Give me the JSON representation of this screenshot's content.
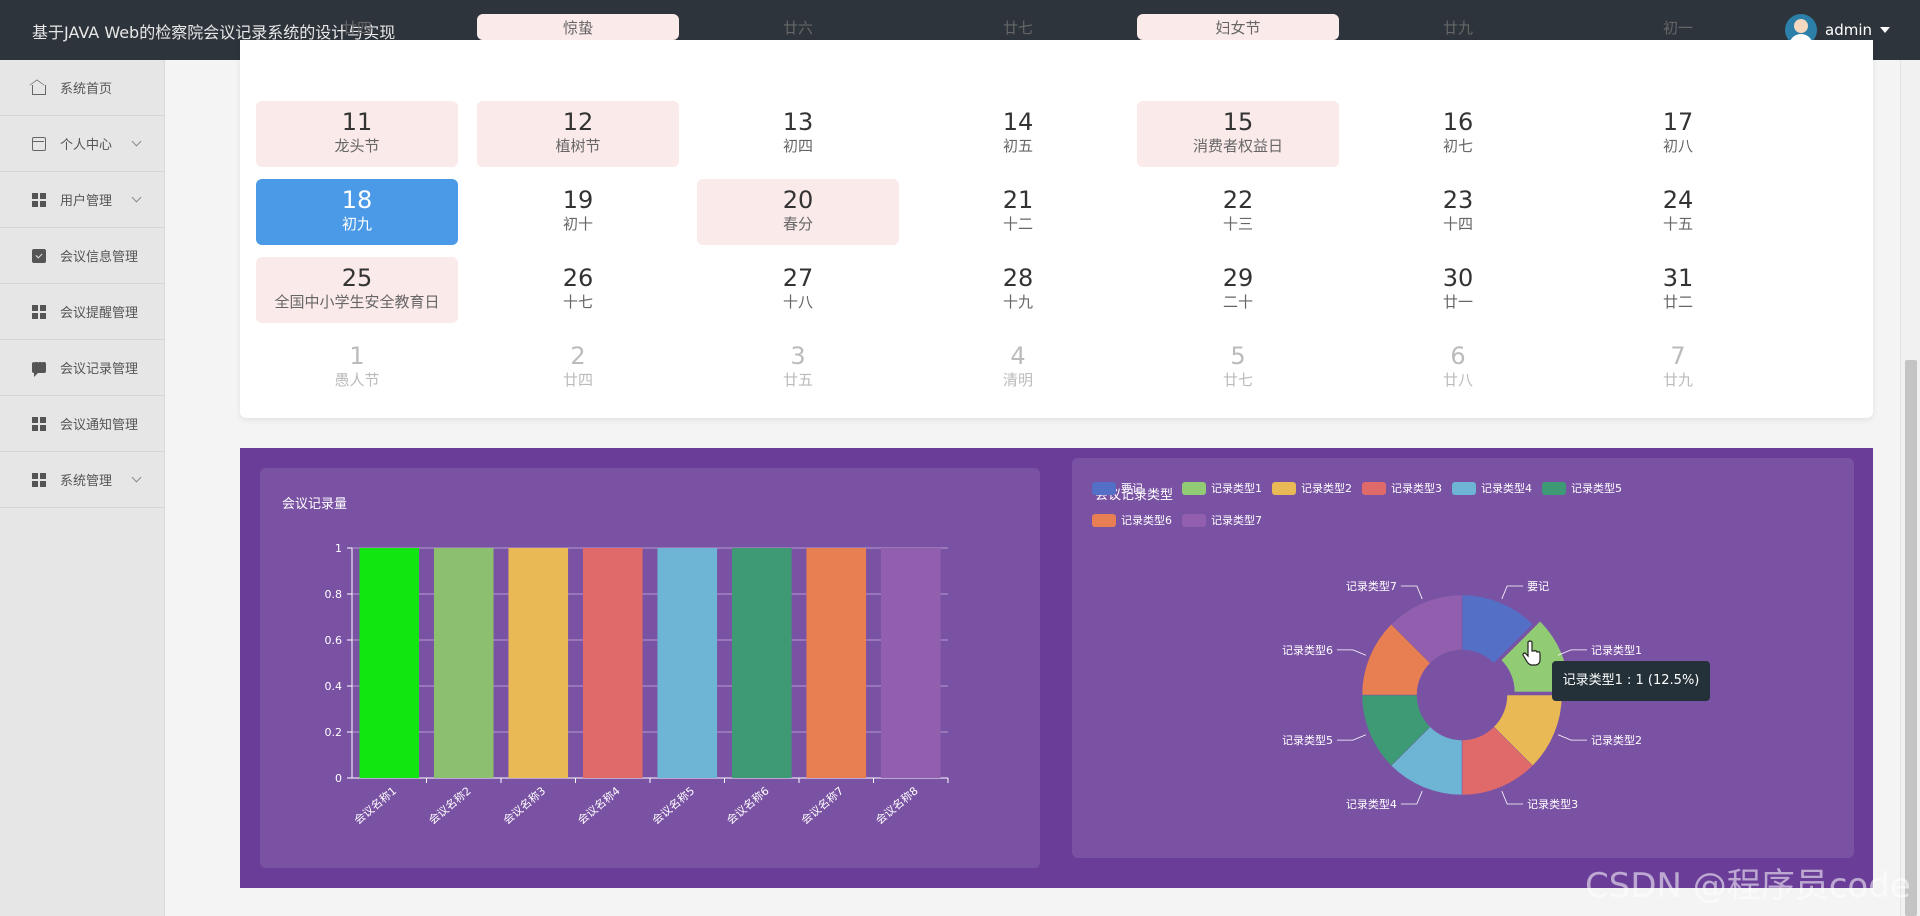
{
  "app": {
    "title": "基于JAVA Web的检察院会议记录系统的设计与实现",
    "user": "admin"
  },
  "sidebar": {
    "items": [
      {
        "label": "系统首页",
        "icon": "home-icon",
        "expandable": false
      },
      {
        "label": "个人中心",
        "icon": "id-card-icon",
        "expandable": true
      },
      {
        "label": "用户管理",
        "icon": "grid-icon",
        "expandable": true
      },
      {
        "label": "会议信息管理",
        "icon": "clipboard-check-icon",
        "expandable": false
      },
      {
        "label": "会议提醒管理",
        "icon": "grid-icon",
        "expandable": false
      },
      {
        "label": "会议记录管理",
        "icon": "chat-icon",
        "expandable": false
      },
      {
        "label": "会议通知管理",
        "icon": "grid-icon",
        "expandable": false
      },
      {
        "label": "系统管理",
        "icon": "grid-icon",
        "expandable": true
      }
    ]
  },
  "calendar": {
    "weeks": [
      [
        {
          "d": "",
          "l": "廿四",
          "t": "top"
        },
        {
          "d": "",
          "l": "惊蛰",
          "t": "top hol"
        },
        {
          "d": "",
          "l": "廿六",
          "t": "top"
        },
        {
          "d": "",
          "l": "廿七",
          "t": "top"
        },
        {
          "d": "",
          "l": "妇女节",
          "t": "top hol"
        },
        {
          "d": "",
          "l": "廿九",
          "t": "top"
        },
        {
          "d": "",
          "l": "初一",
          "t": "top"
        }
      ],
      [
        {
          "d": "11",
          "l": "龙头节",
          "t": "hol"
        },
        {
          "d": "12",
          "l": "植树节",
          "t": "hol"
        },
        {
          "d": "13",
          "l": "初四",
          "t": ""
        },
        {
          "d": "14",
          "l": "初五",
          "t": ""
        },
        {
          "d": "15",
          "l": "消费者权益日",
          "t": "hol"
        },
        {
          "d": "16",
          "l": "初七",
          "t": ""
        },
        {
          "d": "17",
          "l": "初八",
          "t": ""
        }
      ],
      [
        {
          "d": "18",
          "l": "初九",
          "t": "today"
        },
        {
          "d": "19",
          "l": "初十",
          "t": ""
        },
        {
          "d": "20",
          "l": "春分",
          "t": "hol"
        },
        {
          "d": "21",
          "l": "十二",
          "t": ""
        },
        {
          "d": "22",
          "l": "十三",
          "t": ""
        },
        {
          "d": "23",
          "l": "十四",
          "t": ""
        },
        {
          "d": "24",
          "l": "十五",
          "t": ""
        }
      ],
      [
        {
          "d": "25",
          "l": "全国中小学生安全教育日",
          "t": "hol"
        },
        {
          "d": "26",
          "l": "十七",
          "t": ""
        },
        {
          "d": "27",
          "l": "十八",
          "t": ""
        },
        {
          "d": "28",
          "l": "十九",
          "t": ""
        },
        {
          "d": "29",
          "l": "二十",
          "t": ""
        },
        {
          "d": "30",
          "l": "廿一",
          "t": ""
        },
        {
          "d": "31",
          "l": "廿二",
          "t": ""
        }
      ],
      [
        {
          "d": "1",
          "l": "愚人节",
          "t": "next"
        },
        {
          "d": "2",
          "l": "廿四",
          "t": "next"
        },
        {
          "d": "3",
          "l": "廿五",
          "t": "next"
        },
        {
          "d": "4",
          "l": "清明",
          "t": "next"
        },
        {
          "d": "5",
          "l": "廿七",
          "t": "next"
        },
        {
          "d": "6",
          "l": "廿八",
          "t": "next"
        },
        {
          "d": "7",
          "l": "廿九",
          "t": "next"
        }
      ]
    ]
  },
  "chart_data": [
    {
      "type": "bar",
      "title": "会议记录量",
      "categories": [
        "会议名称1",
        "会议名称2",
        "会议名称3",
        "会议名称4",
        "会议名称5",
        "会议名称6",
        "会议名称7",
        "会议名称8"
      ],
      "values": [
        1,
        1,
        1,
        1,
        1,
        1,
        1,
        1
      ],
      "colors": [
        "#11e611",
        "#8cc06e",
        "#e8b954",
        "#e06a6a",
        "#6eb4d4",
        "#3e9a74",
        "#e87f52",
        "#925fae"
      ],
      "yticks": [
        "0",
        "0.2",
        "0.4",
        "0.6",
        "0.8",
        "1"
      ],
      "ylim": [
        0,
        1
      ]
    },
    {
      "type": "pie",
      "title": "会议记录类型",
      "labels": [
        "要记",
        "记录类型1",
        "记录类型2",
        "记录类型3",
        "记录类型4",
        "记录类型5",
        "记录类型6",
        "记录类型7"
      ],
      "values": [
        1,
        1,
        1,
        1,
        1,
        1,
        1,
        1
      ],
      "colors": [
        "#5470c6",
        "#91cc75",
        "#e8b954",
        "#e06a6a",
        "#6eb4d4",
        "#3e9a74",
        "#e87f52",
        "#925fae"
      ],
      "tooltip": "记录类型1 : 1 (12.5%)"
    }
  ],
  "watermark": "CSDN @程序员code"
}
